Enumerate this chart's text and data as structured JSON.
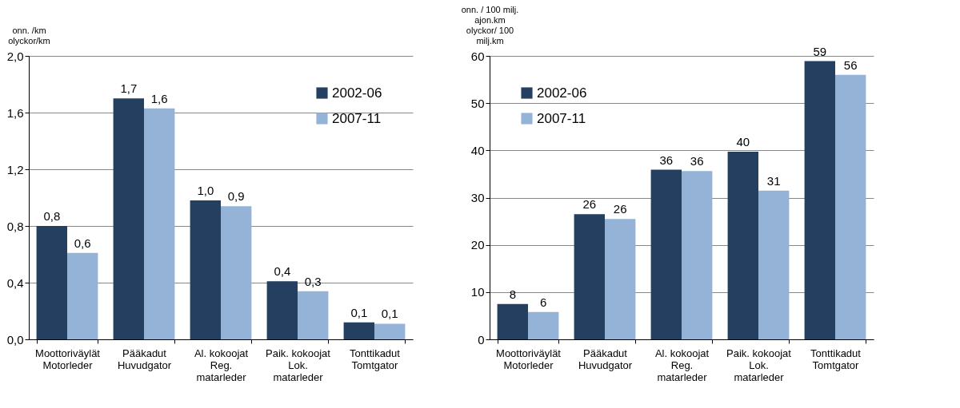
{
  "chart_data": [
    {
      "type": "bar",
      "ylabel": "onn. /km\nolyckor/km",
      "categories": [
        "Moottoriväylät\nMotorleder",
        "Pääkadut\nHuvudgator",
        "Al. kokoojat\nReg.\nmatarleder",
        "Paik. kokoojat\nLok.\nmatarleder",
        "Tonttikadut\nTomtgator"
      ],
      "series": [
        {
          "name": "2002-06",
          "color": "#253f61",
          "values": [
            0.8,
            1.7,
            0.98,
            0.41,
            0.12
          ],
          "value_labels": [
            "0,8",
            "1,7",
            "1,0",
            "0,4",
            "0,1"
          ]
        },
        {
          "name": "2007-11",
          "color": "#95b3d7",
          "values": [
            0.61,
            1.63,
            0.94,
            0.34,
            0.11
          ],
          "value_labels": [
            "0,6",
            "1,6",
            "0,9",
            "0,3",
            "0,1"
          ]
        }
      ],
      "ylim": [
        0,
        2
      ],
      "yticks": [
        {
          "value": 0,
          "label": "0,0"
        },
        {
          "value": 0.4,
          "label": "0,4"
        },
        {
          "value": 0.8,
          "label": "0,8"
        },
        {
          "value": 1.2,
          "label": "1,2"
        },
        {
          "value": 1.6,
          "label": "1,6"
        },
        {
          "value": 2,
          "label": "2,0"
        }
      ],
      "grid": "y",
      "legend": "top right"
    },
    {
      "type": "bar",
      "ylabel": "onn. / 100 milj.\najon.km\nolyckor/ 100\nmilj.km",
      "categories": [
        "Moottoriväylät\nMotorleder",
        "Pääkadut\nHuvudgator",
        "Al. kokoojat\nReg.\nmatarleder",
        "Paik. kokoojat\nLok.\nmatarleder",
        "Tonttikadut\nTomtgator"
      ],
      "series": [
        {
          "name": "2002-06",
          "color": "#253f61",
          "values": [
            7.5,
            26.5,
            35.9,
            39.7,
            58.9
          ],
          "value_labels": [
            "8",
            "26",
            "36",
            "40",
            "59"
          ]
        },
        {
          "name": "2007-11",
          "color": "#95b3d7",
          "values": [
            5.8,
            25.5,
            35.6,
            31.5,
            56.0
          ],
          "value_labels": [
            "6",
            "26",
            "36",
            "31",
            "56"
          ]
        }
      ],
      "ylim": [
        0,
        60
      ],
      "yticks": [
        0,
        10,
        20,
        30,
        40,
        50,
        60
      ],
      "grid": "y",
      "legend": "top left"
    }
  ]
}
